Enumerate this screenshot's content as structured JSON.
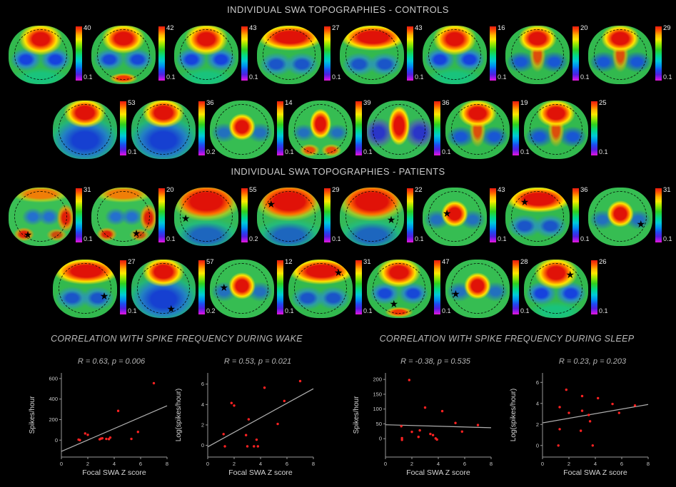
{
  "figure": {
    "controls": {
      "title": "INDIVIDUAL SWA TOPOGRAPHIES - CONTROLS",
      "rows": [
        [
          {
            "max": "40",
            "min": "0.1",
            "pattern": "frontal",
            "star": null
          },
          {
            "max": "42",
            "min": "0.1",
            "pattern": "frontal-occ",
            "star": null
          },
          {
            "max": "43",
            "min": "0.1",
            "pattern": "frontal",
            "star": null
          },
          {
            "max": "27",
            "min": "0.1",
            "pattern": "frontal-band",
            "star": null
          },
          {
            "max": "43",
            "min": "0.1",
            "pattern": "frontal-band",
            "star": null
          },
          {
            "max": "16",
            "min": "0.1",
            "pattern": "frontal",
            "star": null
          },
          {
            "max": "20",
            "min": "0.1",
            "pattern": "frontal-central",
            "star": null
          },
          {
            "max": "29",
            "min": "0.1",
            "pattern": "frontal-central",
            "star": null
          }
        ],
        [
          {
            "max": "53",
            "min": "0.1",
            "pattern": "frontal-blue",
            "star": null
          },
          {
            "max": "36",
            "min": "0.2",
            "pattern": "frontal-blue",
            "star": null
          },
          {
            "max": "14",
            "min": "0.1",
            "pattern": "central",
            "star": null
          },
          {
            "max": "39",
            "min": "0.1",
            "pattern": "central-occ",
            "star": null
          },
          {
            "max": "36",
            "min": "0.1",
            "pattern": "central-tall",
            "star": null
          },
          {
            "max": "19",
            "min": "0.1",
            "pattern": "frontal-central",
            "star": null
          },
          {
            "max": "25",
            "min": "0.1",
            "pattern": "frontal-central",
            "star": null
          }
        ]
      ]
    },
    "patients": {
      "title": "INDIVIDUAL SWA TOPOGRAPHIES - PATIENTS",
      "rows": [
        [
          {
            "max": "31",
            "min": "0.1",
            "pattern": "warm-edges",
            "star": [
              30,
              80
            ]
          },
          {
            "max": "20",
            "min": "0.1",
            "pattern": "warm-edges",
            "star": [
              70,
              78
            ]
          },
          {
            "max": "55",
            "min": "0.2",
            "pattern": "frontal-broad",
            "star": [
              18,
              52
            ]
          },
          {
            "max": "29",
            "min": "0.1",
            "pattern": "frontal-broad",
            "star": [
              22,
              28
            ]
          },
          {
            "max": "22",
            "min": "0.1",
            "pattern": "frontal-broad",
            "star": [
              80,
              55
            ]
          },
          {
            "max": "43",
            "min": "0.1",
            "pattern": "central",
            "star": [
              38,
              44
            ]
          },
          {
            "max": "36",
            "min": "0.1",
            "pattern": "frontal-band",
            "star": [
              30,
              24
            ]
          },
          {
            "max": "31",
            "min": "0.1",
            "pattern": "central",
            "star": [
              82,
              62
            ]
          }
        ],
        [
          {
            "max": "27",
            "min": "0.1",
            "pattern": "frontal-band",
            "star": [
              80,
              62
            ]
          },
          {
            "max": "57",
            "min": "0.2",
            "pattern": "frontal-blue",
            "star": [
              62,
              84
            ]
          },
          {
            "max": "12",
            "min": "0.1",
            "pattern": "central",
            "star": [
              22,
              48
            ]
          },
          {
            "max": "31",
            "min": "0.1",
            "pattern": "frontal-band",
            "star": [
              78,
              22
            ]
          },
          {
            "max": "47",
            "min": "0.1",
            "pattern": "frontal-occ",
            "star": [
              42,
              76
            ]
          },
          {
            "max": "28",
            "min": "0.1",
            "pattern": "central",
            "star": [
              16,
              58
            ]
          },
          {
            "max": "26",
            "min": "0.1",
            "pattern": "frontal",
            "star": [
              72,
              25
            ]
          }
        ]
      ]
    },
    "wake_title": "CORRELATION WITH SPIKE FREQUENCY DURING WAKE",
    "sleep_title": "CORRELATION WITH SPIKE FREQUENCY DURING SLEEP"
  },
  "colors": {
    "background": "#000000",
    "title_text": "#c9c9c9",
    "point_red": "#ff2222",
    "trend_gray": "#b0b0b0",
    "axis_gray": "#9a9a9a"
  },
  "chart_data": [
    {
      "type": "scatter",
      "panel": "wake-left",
      "stats": "R = 0.63, p = 0.006",
      "xlabel": "Focal SWA Z score",
      "ylabel": "Spikes/hour",
      "xlim": [
        0,
        8
      ],
      "xticks": [
        0,
        2,
        4,
        6,
        8
      ],
      "yticks": [
        0,
        200,
        400,
        600
      ],
      "ydraw": [
        -165,
        655
      ],
      "points": [
        [
          1.3,
          5
        ],
        [
          1.4,
          0
        ],
        [
          1.8,
          65
        ],
        [
          2.0,
          52
        ],
        [
          2.9,
          8
        ],
        [
          3.0,
          15
        ],
        [
          3.1,
          18
        ],
        [
          3.4,
          12
        ],
        [
          3.6,
          10
        ],
        [
          3.7,
          25
        ],
        [
          4.3,
          285
        ],
        [
          5.3,
          12
        ],
        [
          5.8,
          80
        ],
        [
          7.0,
          555
        ]
      ],
      "trendline": [
        [
          0,
          -110
        ],
        [
          8,
          335
        ]
      ]
    },
    {
      "type": "scatter",
      "panel": "wake-right",
      "stats": "R = 0.53, p = 0.021",
      "xlabel": "Focal SWA Z score",
      "ylabel": "Log(spikes/hour)",
      "xlim": [
        0,
        8
      ],
      "xticks": [
        0,
        2,
        4,
        6,
        8
      ],
      "yticks": [
        0,
        2,
        4,
        6
      ],
      "ydraw": [
        -1.15,
        7.1
      ],
      "points": [
        [
          1.2,
          1.1
        ],
        [
          1.3,
          -0.1
        ],
        [
          1.8,
          4.15
        ],
        [
          2.0,
          3.9
        ],
        [
          2.9,
          1.0
        ],
        [
          3.0,
          -0.1
        ],
        [
          3.1,
          2.55
        ],
        [
          3.5,
          -0.1
        ],
        [
          3.7,
          0.55
        ],
        [
          3.8,
          -0.1
        ],
        [
          4.3,
          5.65
        ],
        [
          5.3,
          2.1
        ],
        [
          5.8,
          4.35
        ],
        [
          7.0,
          6.3
        ]
      ],
      "trendline": [
        [
          0,
          -0.15
        ],
        [
          8,
          5.55
        ]
      ]
    },
    {
      "type": "scatter",
      "panel": "sleep-left",
      "stats": "R = -0.38, p = 0.535",
      "xlabel": "Focal SWA Z score",
      "ylabel": "Spikes/hour",
      "xlim": [
        0,
        8
      ],
      "xticks": [
        0,
        2,
        4,
        6,
        8
      ],
      "yticks": [
        0,
        50,
        100,
        150,
        200
      ],
      "ydraw": [
        -62,
        222
      ],
      "points": [
        [
          1.2,
          42
        ],
        [
          1.25,
          2
        ],
        [
          1.25,
          -4
        ],
        [
          1.8,
          198
        ],
        [
          2.0,
          23
        ],
        [
          2.5,
          6
        ],
        [
          2.6,
          28
        ],
        [
          3.0,
          105
        ],
        [
          3.4,
          16
        ],
        [
          3.6,
          12
        ],
        [
          3.8,
          1
        ],
        [
          3.9,
          -3
        ],
        [
          4.3,
          93
        ],
        [
          5.3,
          53
        ],
        [
          5.8,
          24
        ],
        [
          7.0,
          46
        ]
      ],
      "trendline": [
        [
          0,
          47
        ],
        [
          8,
          37
        ]
      ]
    },
    {
      "type": "scatter",
      "panel": "sleep-right",
      "stats": "R = 0.23, p = 0.203",
      "xlabel": "Focal SWA Z score",
      "ylabel": "Log(spikes/hour)",
      "xlim": [
        0,
        8
      ],
      "xticks": [
        0,
        2,
        4,
        6,
        8
      ],
      "yticks": [
        0,
        2,
        4,
        6
      ],
      "ydraw": [
        -1.1,
        6.9
      ],
      "points": [
        [
          1.2,
          0.0
        ],
        [
          1.3,
          1.55
        ],
        [
          1.3,
          3.65
        ],
        [
          1.8,
          5.3
        ],
        [
          2.0,
          3.1
        ],
        [
          2.9,
          1.4
        ],
        [
          3.0,
          3.3
        ],
        [
          3.0,
          4.7
        ],
        [
          3.5,
          2.9
        ],
        [
          3.6,
          2.3
        ],
        [
          3.8,
          0.0
        ],
        [
          4.2,
          4.5
        ],
        [
          5.3,
          3.95
        ],
        [
          5.8,
          3.1
        ],
        [
          7.0,
          3.8
        ]
      ],
      "trendline": [
        [
          0,
          2.15
        ],
        [
          8,
          3.9
        ]
      ]
    }
  ]
}
